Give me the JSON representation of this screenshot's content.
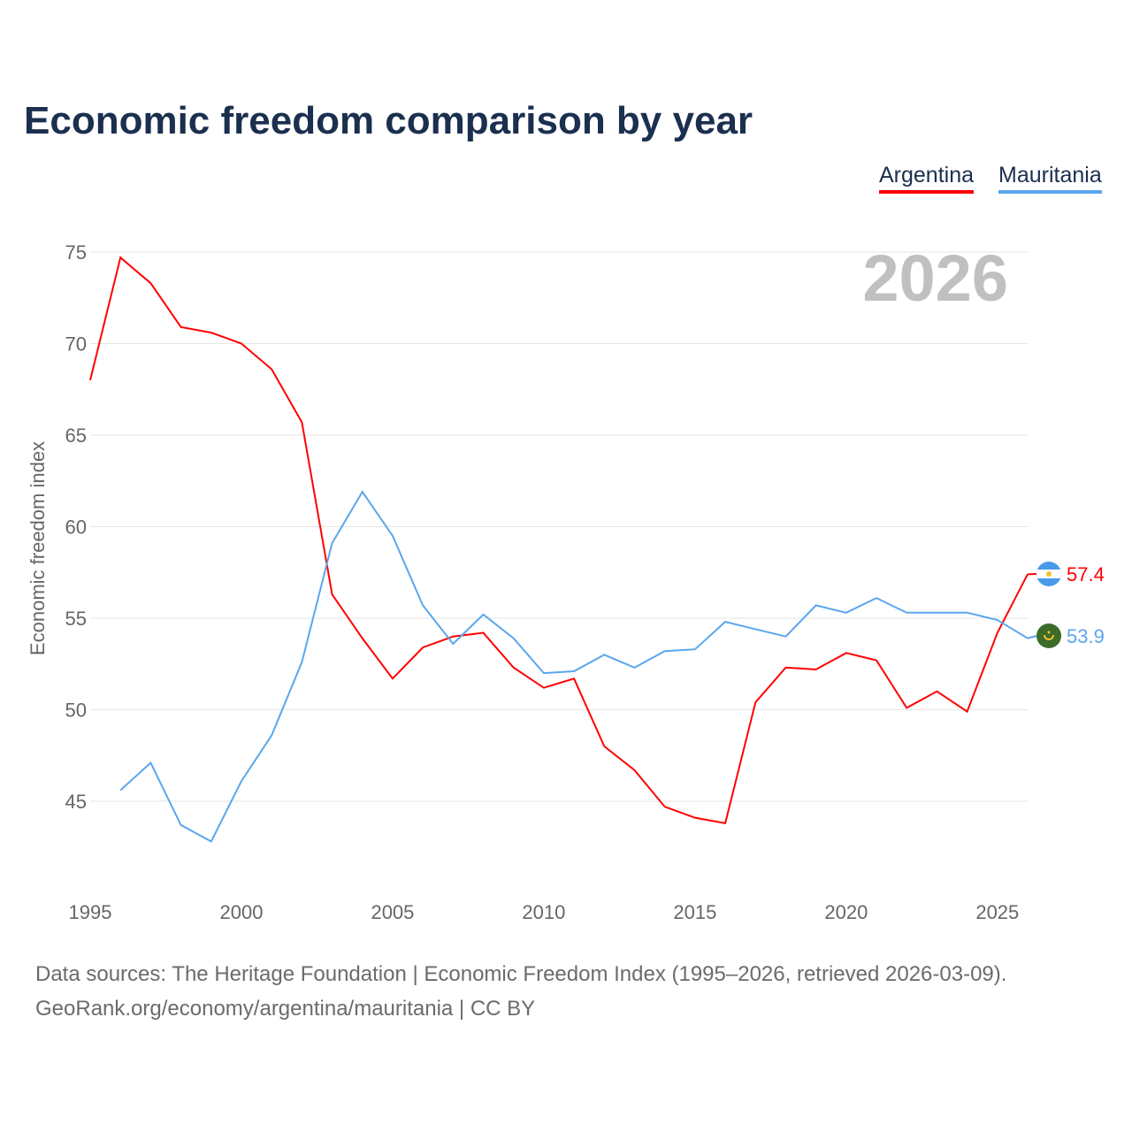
{
  "chart_data": {
    "type": "line",
    "title": "Economic freedom comparison by year",
    "xlabel": "",
    "ylabel": "Economic freedom index",
    "xlim": [
      1995,
      2026
    ],
    "ylim": [
      40.5,
      76
    ],
    "xticks": [
      1995,
      2000,
      2005,
      2010,
      2015,
      2020,
      2025
    ],
    "yticks": [
      45,
      50,
      55,
      60,
      65,
      70,
      75
    ],
    "grid": true,
    "legend_position": "top-right",
    "year_label": "2026",
    "series": [
      {
        "name": "Argentina",
        "color": "#ff0000",
        "end_label": "57.4",
        "x": [
          1995,
          1996,
          1997,
          1998,
          1999,
          2000,
          2001,
          2002,
          2003,
          2004,
          2005,
          2006,
          2007,
          2008,
          2009,
          2010,
          2011,
          2012,
          2013,
          2014,
          2015,
          2016,
          2017,
          2018,
          2019,
          2020,
          2021,
          2022,
          2023,
          2024,
          2025,
          2026
        ],
        "values": [
          68.0,
          74.7,
          73.3,
          70.9,
          70.6,
          70.0,
          68.6,
          65.7,
          56.3,
          53.9,
          51.7,
          53.4,
          54.0,
          54.2,
          52.3,
          51.2,
          51.7,
          48.0,
          46.7,
          44.7,
          44.1,
          43.8,
          50.4,
          52.3,
          52.2,
          53.1,
          52.7,
          50.1,
          51.0,
          49.9,
          54.2,
          57.4
        ]
      },
      {
        "name": "Mauritania",
        "color": "#5aa6ee",
        "end_label": "53.9",
        "x": [
          1996,
          1997,
          1998,
          1999,
          2000,
          2001,
          2002,
          2003,
          2004,
          2005,
          2006,
          2007,
          2008,
          2009,
          2010,
          2011,
          2012,
          2013,
          2014,
          2015,
          2016,
          2017,
          2018,
          2019,
          2020,
          2021,
          2022,
          2023,
          2024,
          2025,
          2026
        ],
        "values": [
          45.6,
          47.1,
          43.7,
          42.8,
          46.1,
          48.6,
          52.6,
          59.1,
          61.9,
          59.5,
          55.7,
          53.6,
          55.2,
          53.9,
          52.0,
          52.1,
          53.0,
          52.3,
          53.2,
          53.3,
          54.8,
          54.4,
          54.0,
          55.7,
          55.3,
          56.1,
          55.3,
          55.3,
          55.3,
          54.9,
          53.9
        ]
      }
    ]
  },
  "footer": {
    "line1": "Data sources: The Heritage Foundation | Economic Freedom Index (1995–2026, retrieved 2026-03-09).",
    "line2": "GeoRank.org/economy/argentina/mauritania | CC BY"
  }
}
